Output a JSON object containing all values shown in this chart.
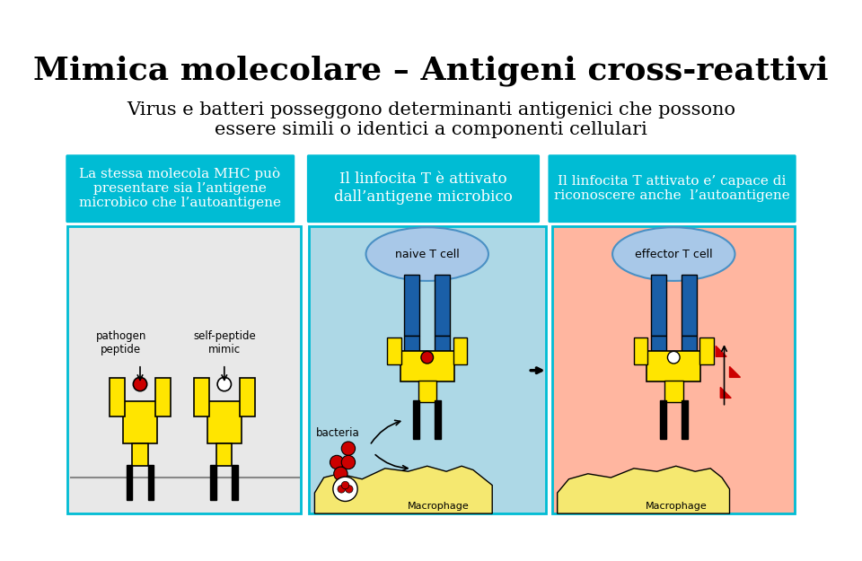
{
  "title": "Mimica molecolare – Antigeni cross-reattivi",
  "subtitle_line1": "Virus e batteri posseggono determinanti antigenici che possono",
  "subtitle_line2": "essere simili o identici a componenti cellulari",
  "box1_text": "La stessa molecola MHC può\npresentare sia l’antigene\nmicrobico che l’autoantigene",
  "box2_text": "Il linfocita T è attivato\ndall’antigene microbico",
  "box3_text": "Il linfocita T attivato e’ capace di\nriconoscere anche  l’autoantigene",
  "box_color": "#00bcd4",
  "box_text_color": "#ffffff",
  "panel1_bg": "#e8e8e8",
  "panel2_bg": "#add8e6",
  "panel3_bg": "#ffb6a0",
  "border_color": "#00bcd4",
  "yellow": "#FFE500",
  "blue_dark": "#1a5fa8",
  "red": "#cc0000",
  "black": "#000000",
  "white": "#ffffff",
  "label_pathogen": "pathogen\npeptide",
  "label_selfpeptide": "self-peptide\nmimic",
  "label_bacteria": "bacteria",
  "label_naive": "naive T cell",
  "label_effector": "effector T cell",
  "label_macro1": "Macrophage",
  "label_macro2": "Macrophage",
  "bg_color": "#ffffff"
}
